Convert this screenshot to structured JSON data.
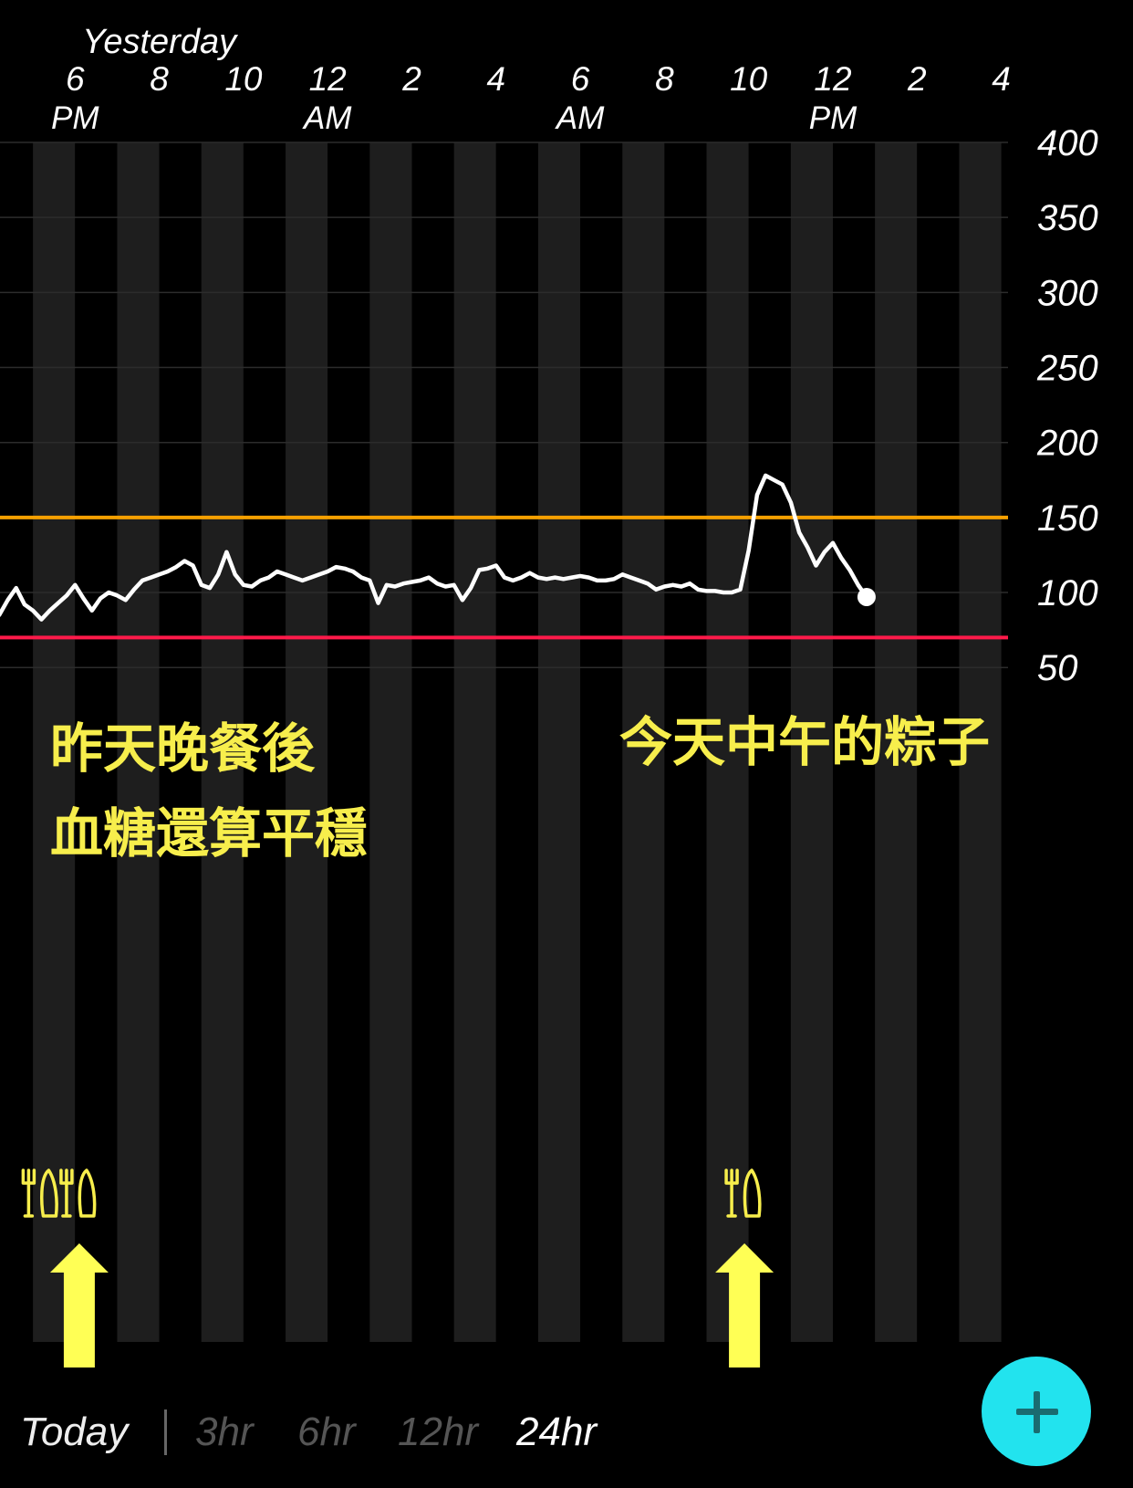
{
  "chart_data": {
    "type": "line",
    "title": "",
    "xlabel": "",
    "ylabel": "",
    "date_label": "Yesterday",
    "x_ticks": [
      {
        "label": "4",
        "sub": ""
      },
      {
        "label": "6",
        "sub": "PM"
      },
      {
        "label": "8",
        "sub": ""
      },
      {
        "label": "10",
        "sub": ""
      },
      {
        "label": "12",
        "sub": "AM"
      },
      {
        "label": "2",
        "sub": ""
      },
      {
        "label": "4",
        "sub": ""
      },
      {
        "label": "6",
        "sub": "AM"
      },
      {
        "label": "8",
        "sub": ""
      },
      {
        "label": "10",
        "sub": ""
      },
      {
        "label": "12",
        "sub": "PM"
      },
      {
        "label": "2",
        "sub": ""
      },
      {
        "label": "4",
        "sub": ""
      }
    ],
    "y_ticks": [
      400,
      350,
      300,
      250,
      200,
      150,
      100,
      50
    ],
    "ylim": [
      0,
      400
    ],
    "high_threshold": 150,
    "low_threshold": 70,
    "high_color": "#f5a000",
    "low_color": "#ff1a4a",
    "line_color": "#ffffff",
    "series": [
      {
        "values": [
          [
            -0.1,
            90
          ],
          [
            0.0,
            87
          ],
          [
            0.2,
            85
          ],
          [
            0.4,
            95
          ],
          [
            0.6,
            103
          ],
          [
            0.8,
            92
          ],
          [
            1.0,
            88
          ],
          [
            1.2,
            82
          ],
          [
            1.4,
            88
          ],
          [
            1.6,
            93
          ],
          [
            1.8,
            98
          ],
          [
            2.0,
            105
          ],
          [
            2.2,
            96
          ],
          [
            2.4,
            88
          ],
          [
            2.6,
            96
          ],
          [
            2.8,
            100
          ],
          [
            3.0,
            98
          ],
          [
            3.2,
            95
          ],
          [
            3.4,
            102
          ],
          [
            3.6,
            108
          ],
          [
            3.8,
            110
          ],
          [
            4.0,
            112
          ],
          [
            4.2,
            114
          ],
          [
            4.4,
            117
          ],
          [
            4.6,
            121
          ],
          [
            4.8,
            118
          ],
          [
            5.0,
            105
          ],
          [
            5.2,
            103
          ],
          [
            5.4,
            112
          ],
          [
            5.6,
            127
          ],
          [
            5.8,
            112
          ],
          [
            6.0,
            105
          ],
          [
            6.2,
            104
          ],
          [
            6.4,
            108
          ],
          [
            6.6,
            110
          ],
          [
            6.8,
            114
          ],
          [
            7.0,
            112
          ],
          [
            7.2,
            110
          ],
          [
            7.4,
            108
          ],
          [
            7.6,
            110
          ],
          [
            7.8,
            112
          ],
          [
            8.0,
            114
          ],
          [
            8.2,
            117
          ],
          [
            8.4,
            116
          ],
          [
            8.6,
            114
          ],
          [
            8.8,
            110
          ],
          [
            9.0,
            108
          ],
          [
            9.2,
            93
          ],
          [
            9.4,
            105
          ],
          [
            9.6,
            104
          ],
          [
            9.8,
            106
          ],
          [
            10.0,
            107
          ],
          [
            10.2,
            108
          ],
          [
            10.4,
            110
          ],
          [
            10.6,
            106
          ],
          [
            10.8,
            104
          ],
          [
            11.0,
            105
          ],
          [
            11.2,
            95
          ],
          [
            11.4,
            103
          ],
          [
            11.6,
            115
          ],
          [
            11.8,
            116
          ],
          [
            12.0,
            118
          ],
          [
            12.2,
            110
          ],
          [
            12.4,
            108
          ],
          [
            12.6,
            110
          ],
          [
            12.8,
            113
          ],
          [
            13.0,
            110
          ],
          [
            13.2,
            109
          ],
          [
            13.4,
            110
          ],
          [
            13.6,
            109
          ],
          [
            13.8,
            110
          ],
          [
            14.0,
            111
          ],
          [
            14.2,
            110
          ],
          [
            14.4,
            108
          ],
          [
            14.6,
            108
          ],
          [
            14.8,
            109
          ],
          [
            15.0,
            112
          ],
          [
            15.2,
            110
          ],
          [
            15.4,
            108
          ],
          [
            15.6,
            106
          ],
          [
            15.8,
            102
          ],
          [
            16.0,
            104
          ],
          [
            16.2,
            105
          ],
          [
            16.4,
            104
          ],
          [
            16.6,
            106
          ],
          [
            16.8,
            102
          ],
          [
            17.0,
            101
          ],
          [
            17.2,
            101
          ],
          [
            17.4,
            100
          ],
          [
            17.6,
            100
          ],
          [
            17.8,
            102
          ],
          [
            18.0,
            128
          ],
          [
            18.2,
            165
          ],
          [
            18.4,
            178
          ],
          [
            18.6,
            175
          ],
          [
            18.8,
            172
          ],
          [
            19.0,
            160
          ],
          [
            19.2,
            140
          ],
          [
            19.4,
            130
          ],
          [
            19.6,
            118
          ],
          [
            19.8,
            127
          ],
          [
            20.0,
            133
          ],
          [
            20.2,
            123
          ],
          [
            20.4,
            115
          ],
          [
            20.6,
            105
          ],
          [
            20.8,
            97
          ]
        ]
      }
    ],
    "meal_markers_hours": [
      1.2,
      2.1,
      17.9
    ],
    "arrow_hours": [
      2.1,
      17.9
    ],
    "annotations": [
      {
        "lines": [
          "昨天晚餐後",
          "血糖還算平穩"
        ]
      },
      {
        "lines": [
          "今天中午的粽子"
        ]
      }
    ]
  },
  "toolbar": {
    "today_label": "Today",
    "range_3hr": "3hr",
    "range_6hr": "6hr",
    "range_12hr": "12hr",
    "range_24hr": "24hr",
    "add_icon": "plus-icon",
    "add_color": "#22e3ee"
  }
}
